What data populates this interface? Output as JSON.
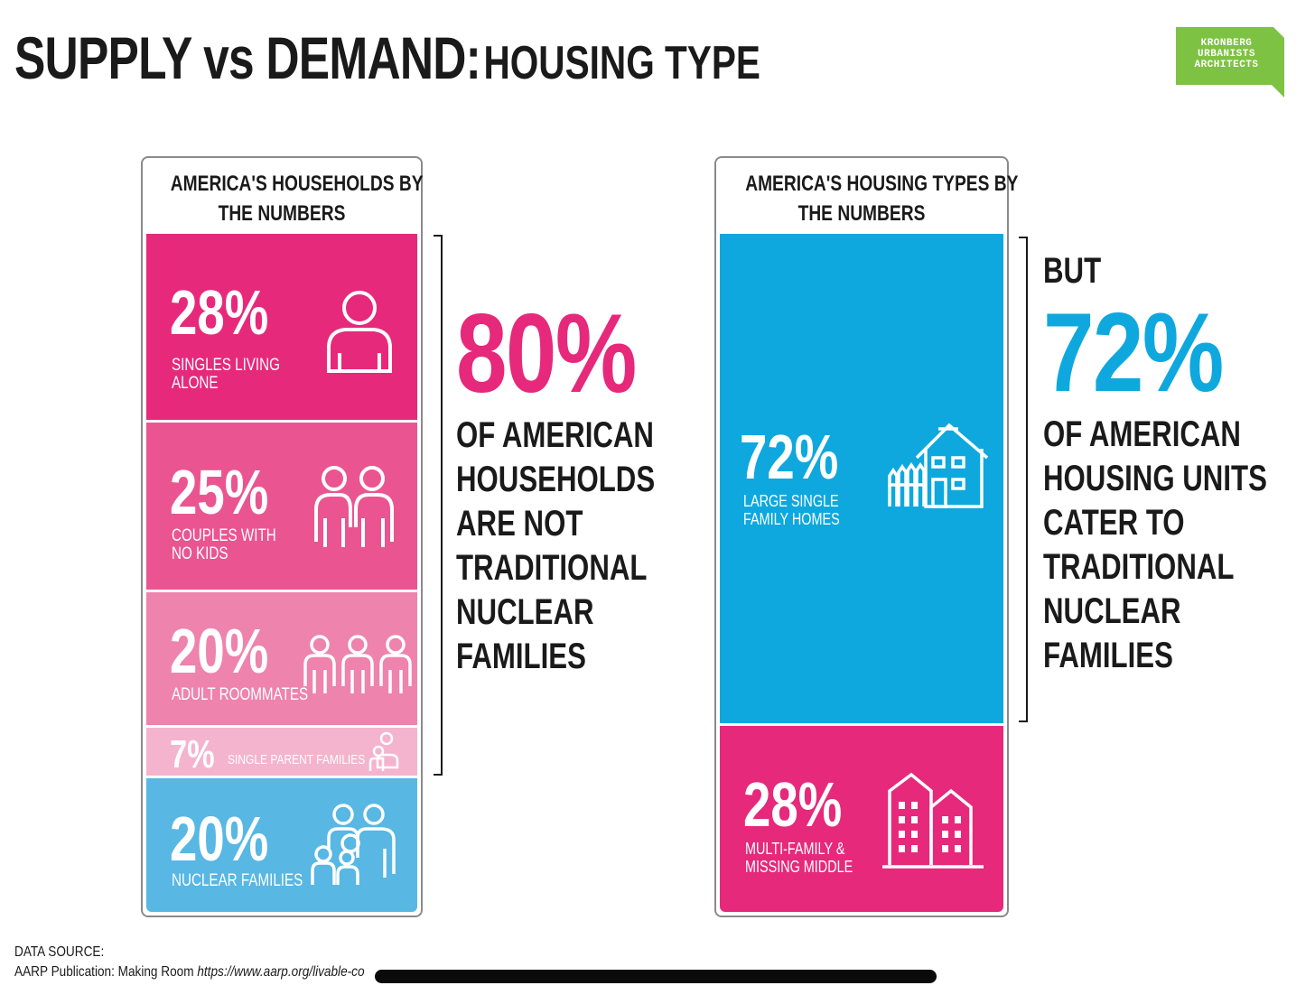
{
  "title": {
    "part1": "SUPPLY vs DEMAND:",
    "part2": "HOUSING TYPE"
  },
  "logo": {
    "lines": [
      "KRONBERG",
      "URBANISTS",
      "ARCHITECTS"
    ],
    "color": "#7dc242"
  },
  "households": {
    "heading_line1": "AMERICA'S HOUSEHOLDS BY",
    "heading_line2": "THE NUMBERS",
    "segments": [
      {
        "pct": "28%",
        "label": "SINGLES LIVING ALONE",
        "icon": "single-person-icon",
        "color": "#e6297b",
        "value": 28
      },
      {
        "pct": "25%",
        "label": "COUPLES WITH NO KIDS",
        "icon": "couple-icon",
        "color": "#ea5591",
        "value": 25
      },
      {
        "pct": "20%",
        "label": "ADULT ROOMMATES",
        "icon": "roommates-icon",
        "color": "#ee83ad",
        "value": 20
      },
      {
        "pct": "7%",
        "label": "SINGLE PARENT FAMILIES",
        "icon": "single-parent-icon",
        "color": "#f4b4cd",
        "value": 7
      },
      {
        "pct": "20%",
        "label": "NUCLEAR FAMILIES",
        "icon": "nuclear-family-icon",
        "color": "#58b7e3",
        "value": 20
      }
    ]
  },
  "left_statement": {
    "big": "80%",
    "lines": [
      "OF AMERICAN",
      "HOUSEHOLDS",
      "ARE NOT",
      "TRADITIONAL",
      "NUCLEAR",
      "FAMILIES"
    ],
    "color": "#e6297b"
  },
  "housing": {
    "heading_line1": "AMERICA'S HOUSING TYPES BY",
    "heading_line2": "THE NUMBERS",
    "segments": [
      {
        "pct": "72%",
        "label": "LARGE SINGLE FAMILY HOMES",
        "icon": "house-with-fence-icon",
        "color": "#0ea8de",
        "value": 72
      },
      {
        "pct": "28%",
        "label": "MULTI-FAMILY & MISSING MIDDLE",
        "icon": "apartment-buildings-icon",
        "color": "#e6297b",
        "value": 28
      }
    ]
  },
  "right_statement": {
    "prefix": "BUT",
    "big": "72%",
    "lines": [
      "OF AMERICAN",
      "HOUSING UNITS",
      "CATER TO",
      "TRADITIONAL",
      "NUCLEAR",
      "FAMILIES"
    ],
    "color": "#0ea8de"
  },
  "footer": {
    "label": "DATA SOURCE:",
    "publication": "AARP Publication: Making Room",
    "url": "https://www.aarp.org/livable-co"
  }
}
